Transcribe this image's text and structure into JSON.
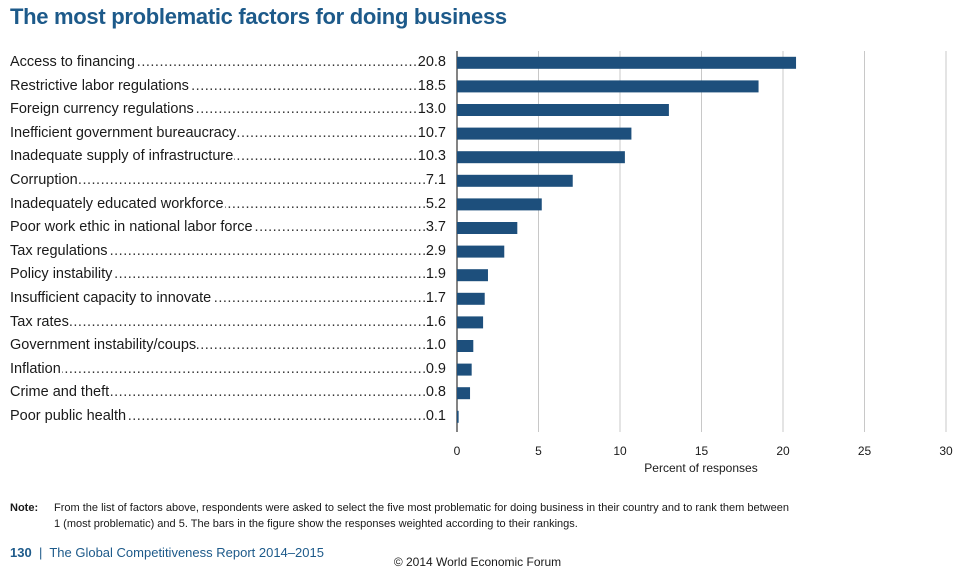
{
  "page": {
    "title": "The most problematic factors for doing business",
    "note_label": "Note:",
    "note_text": "From the list of factors above, respondents were asked to select the five most problematic for doing business in their country and to rank them between 1 (most problematic) and 5. The bars in the figure show the responses weighted according to their rankings.",
    "footer_page": "130",
    "footer_separator": "|",
    "footer_report": "The Global Competitiveness Report 2014–2015",
    "copyright": "© 2014 World Economic Forum"
  },
  "chart_data": {
    "type": "bar",
    "orientation": "horizontal",
    "title": "The most problematic factors for doing business",
    "xlabel": "Percent of responses",
    "ylabel": "",
    "xlim": [
      0,
      30
    ],
    "xticks": [
      "0",
      "5",
      "10",
      "15",
      "20",
      "25",
      "30"
    ],
    "grid": true,
    "bar_color": "#1d4f7c",
    "categories": [
      "Access to financing",
      "Restrictive labor regulations",
      "Foreign currency regulations",
      "Inefficient government bureaucracy",
      "Inadequate supply of infrastructure",
      "Corruption",
      "Inadequately educated workforce",
      "Poor work ethic in national labor force",
      "Tax regulations",
      "Policy instability",
      "Insufficient capacity to innovate",
      "Tax rates",
      "Government instability/coups",
      "Inflation",
      "Crime and theft",
      "Poor public health"
    ],
    "values": [
      20.8,
      18.5,
      13.0,
      10.7,
      10.3,
      7.1,
      5.2,
      3.7,
      2.9,
      1.9,
      1.7,
      1.6,
      1.0,
      0.9,
      0.8,
      0.1
    ],
    "value_labels": [
      "20.8",
      "18.5",
      "13.0",
      "10.7",
      "10.3",
      "7.1",
      "5.2",
      "3.7",
      "2.9",
      "1.9",
      "1.7",
      "1.6",
      "1.0",
      "0.9",
      "0.8",
      "0.1"
    ]
  }
}
